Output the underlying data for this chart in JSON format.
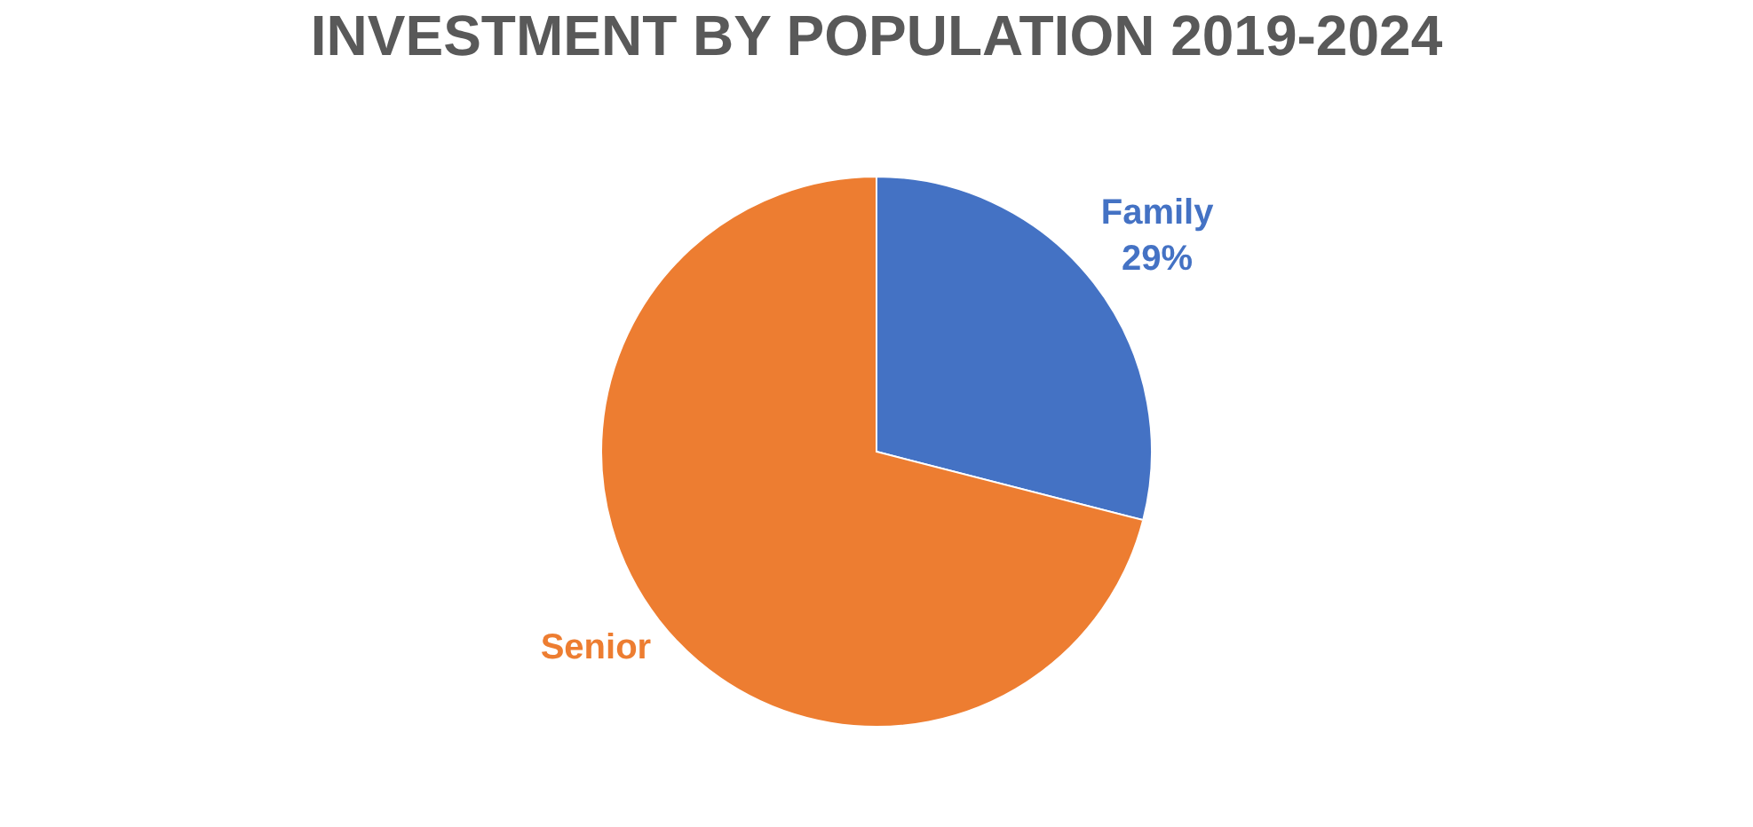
{
  "chart_data": {
    "type": "pie",
    "title": "INVESTMENT BY POPULATION 2019-2024",
    "categories": [
      "Family",
      "Senior"
    ],
    "values": [
      29,
      71
    ],
    "colors": [
      "#4472c4",
      "#ed7d31"
    ],
    "value_labels": [
      "29%",
      null
    ]
  }
}
